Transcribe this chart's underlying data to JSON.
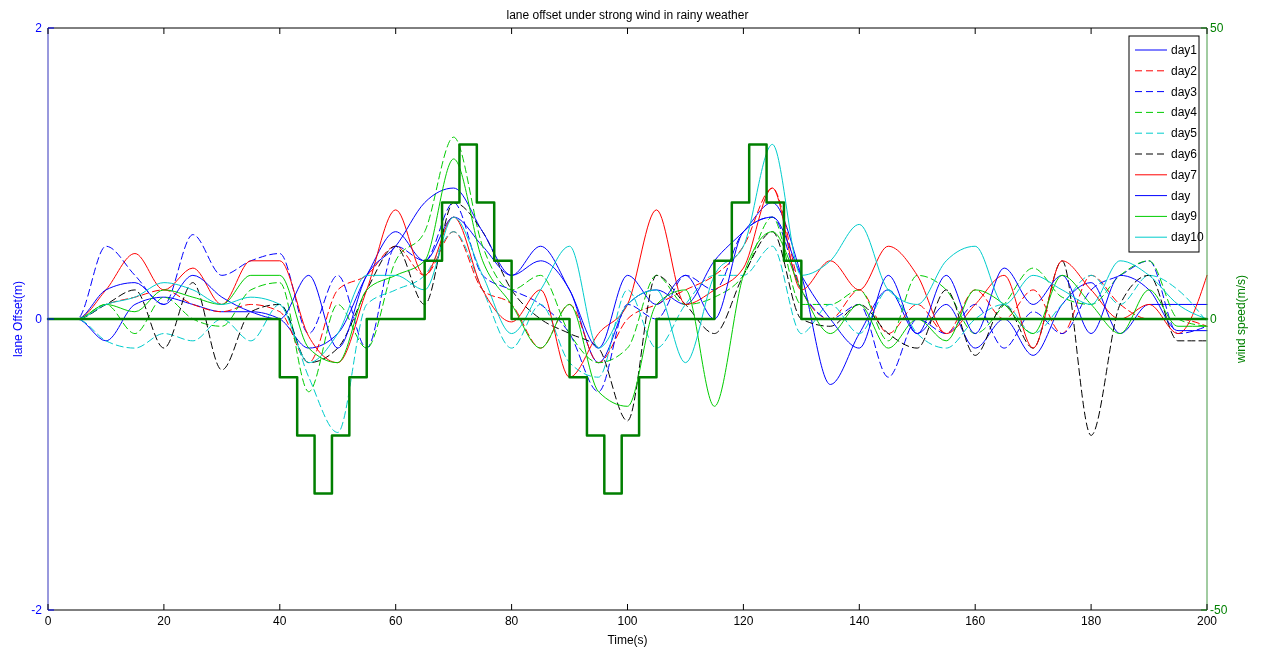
{
  "chart_data": {
    "type": "line",
    "title": "lane offset under strong wind in rainy weather",
    "xlabel": "Time(s)",
    "ylabel": "lane Offset(m)",
    "y2label": "wind speed(m/s)",
    "xlim": [
      0,
      200
    ],
    "xticks": [
      0,
      20,
      40,
      60,
      80,
      100,
      120,
      140,
      160,
      180,
      200
    ],
    "ylim": [
      -2,
      2
    ],
    "yticks": [
      -2,
      0,
      2
    ],
    "y2lim": [
      -50,
      50
    ],
    "y2ticks": [
      -50,
      0,
      50
    ],
    "grid": false,
    "legend": "top right",
    "x": [
      0,
      5,
      10,
      15,
      20,
      25,
      30,
      35,
      40,
      45,
      50,
      55,
      60,
      65,
      70,
      75,
      80,
      85,
      90,
      95,
      100,
      105,
      110,
      115,
      120,
      125,
      130,
      135,
      140,
      145,
      150,
      155,
      160,
      165,
      170,
      175,
      180,
      185,
      190,
      195,
      200
    ],
    "series": [
      {
        "name": "day1",
        "color": "#0000ff",
        "line_style": "solid",
        "values": [
          0,
          0,
          -0.15,
          0.1,
          0.15,
          0.1,
          0.05,
          0.05,
          0,
          -0.2,
          -0.1,
          0.3,
          0.6,
          0.4,
          0.7,
          0.5,
          0.3,
          0.4,
          0.2,
          -0.3,
          0.1,
          0.2,
          0.1,
          0.4,
          0.6,
          0.8,
          0.3,
          -0.45,
          -0.1,
          0.2,
          -0.1,
          0.1,
          -0.2,
          0,
          -0.25,
          0.1,
          0.25,
          -0.1,
          0.1,
          0.1,
          0.1
        ]
      },
      {
        "name": "day2",
        "color": "#ff0000",
        "line_style": "dashed",
        "values": [
          0,
          0,
          0.1,
          0.15,
          0.2,
          0.1,
          0.05,
          0.1,
          0.05,
          -0.3,
          0.2,
          0.3,
          0.5,
          0.3,
          0.6,
          0.2,
          0.1,
          -0.2,
          0.1,
          -0.3,
          0,
          0.1,
          0.2,
          0.3,
          0.5,
          0.9,
          0.2,
          0,
          0.2,
          -0.1,
          0.1,
          -0.1,
          0.2,
          0,
          0.2,
          -0.1,
          0.3,
          0.1,
          0,
          0,
          -0.05
        ]
      },
      {
        "name": "day3",
        "color": "#0000ff",
        "line_style": "dashed",
        "values": [
          0,
          0,
          0.5,
          0.3,
          0.1,
          0.58,
          0.3,
          0.4,
          0.45,
          -0.1,
          0.3,
          -0.2,
          0.5,
          0.4,
          0.8,
          0.3,
          0.2,
          0.1,
          -0.1,
          -0.5,
          0.1,
          0,
          0.3,
          0.2,
          0.6,
          0.7,
          0.2,
          0,
          0.1,
          -0.4,
          0,
          -0.1,
          0.1,
          -0.2,
          0.05,
          -0.1,
          0.2,
          0.3,
          0.4,
          -0.1,
          -0.05
        ]
      },
      {
        "name": "day4",
        "color": "#00cc00",
        "line_style": "dashed",
        "values": [
          0,
          0,
          0.1,
          -0.1,
          0.15,
          0,
          -0.05,
          0.2,
          0.25,
          -0.5,
          0.1,
          -0.2,
          0.4,
          0.6,
          1.25,
          0.5,
          0.2,
          0.3,
          -0.1,
          -0.3,
          -0.2,
          0.3,
          0.1,
          0.15,
          0.3,
          0.7,
          0.1,
          0.1,
          0.2,
          -0.15,
          0.3,
          0.2,
          -0.1,
          0.1,
          0.35,
          0.15,
          0.1,
          0.3,
          0.4,
          0,
          -0.05
        ]
      },
      {
        "name": "day5",
        "color": "#00cccc",
        "line_style": "dashed",
        "values": [
          0,
          0,
          -0.15,
          -0.2,
          -0.1,
          -0.15,
          0,
          -0.15,
          0.1,
          -0.4,
          -0.78,
          0.1,
          0.2,
          0.3,
          0.6,
          0.2,
          -0.2,
          0.1,
          -0.3,
          -0.4,
          0.2,
          -0.2,
          0.1,
          0.3,
          0.3,
          0.5,
          -0.1,
          0.1,
          -0.1,
          0.2,
          -0.1,
          -0.2,
          0,
          0.1,
          -0.1,
          0.1,
          0.3,
          0.1,
          0.3,
          0.2,
          -0.02
        ]
      },
      {
        "name": "day6",
        "color": "#000000",
        "line_style": "dashed",
        "values": [
          0,
          0,
          0.1,
          0.2,
          -0.2,
          0.25,
          -0.35,
          0.05,
          0.1,
          -0.3,
          -0.2,
          0.2,
          0.5,
          0.1,
          0.8,
          0.6,
          0.2,
          0,
          -0.1,
          -0.2,
          -0.7,
          0.3,
          0.1,
          -0.1,
          0.3,
          0.6,
          0,
          -0.05,
          0.1,
          -0.1,
          -0.2,
          0.2,
          -0.25,
          0.1,
          -0.2,
          0.4,
          -0.8,
          0.1,
          0.3,
          -0.15,
          -0.15
        ]
      },
      {
        "name": "day7",
        "color": "#ff0000",
        "line_style": "solid",
        "values": [
          0,
          0,
          0.2,
          0.45,
          0.2,
          0.35,
          0.1,
          0.4,
          0.4,
          -0.12,
          -0.3,
          0.2,
          0.75,
          0.3,
          0.7,
          0.2,
          -0.02,
          0.2,
          -0.4,
          -0.1,
          0.1,
          0.75,
          0.1,
          0.2,
          0.35,
          0.9,
          0.2,
          0.4,
          0.2,
          0.5,
          0.3,
          -0.1,
          0.1,
          0.3,
          -0.2,
          0.4,
          0.2,
          0,
          0.1,
          -0.1,
          0.3
        ]
      },
      {
        "name": "day",
        "color": "#0000ff",
        "line_style": "solid",
        "values": [
          0,
          0,
          0.2,
          0.25,
          0.1,
          0.3,
          0.15,
          0.05,
          0,
          0.3,
          -0.2,
          0.3,
          0.5,
          0.8,
          0.9,
          0.6,
          0.3,
          0.5,
          0.2,
          -0.2,
          0.3,
          0.1,
          0.3,
          0,
          0.6,
          0.7,
          0.3,
          0,
          -0.2,
          0.3,
          -0.1,
          0.3,
          -0.1,
          0.35,
          0.1,
          0.3,
          -0.1,
          0.3,
          0.2,
          -0.08,
          -0.08
        ]
      },
      {
        "name": "day9",
        "color": "#00cc00",
        "line_style": "solid",
        "values": [
          0,
          0,
          0.1,
          0.05,
          0.2,
          0.15,
          0.1,
          0.3,
          0.3,
          -0.2,
          -0.3,
          0.2,
          0.3,
          0.4,
          1.1,
          0.4,
          0.1,
          -0.2,
          0.1,
          -0.5,
          -0.6,
          0.1,
          0.2,
          -0.6,
          0.3,
          0.6,
          0.2,
          -0.1,
          0.1,
          -0.2,
          0,
          -0.15,
          0.2,
          0.1,
          -0.1,
          0.3,
          0.1,
          -0.1,
          0.2,
          -0.05,
          -0.05
        ]
      },
      {
        "name": "day10",
        "color": "#00cccc",
        "line_style": "solid",
        "values": [
          0,
          0,
          0.1,
          0.15,
          0.25,
          0.2,
          0.1,
          0.15,
          0.1,
          -0.3,
          -0.1,
          0.3,
          0.3,
          0.2,
          0.7,
          0.3,
          -0.1,
          0.2,
          0.5,
          -0.2,
          0.1,
          0.2,
          -0.3,
          0.3,
          0.5,
          1.2,
          0.3,
          0.4,
          0.65,
          0.2,
          0.1,
          0.4,
          0.5,
          0.1,
          0.3,
          0.2,
          0.1,
          0.4,
          0.3,
          0.1,
          0
        ]
      },
      {
        "type": "step",
        "axis": "y2",
        "color": "#007f00",
        "line_style": "solid",
        "x": [
          0,
          40,
          43,
          46,
          49,
          52,
          55,
          65,
          68,
          71,
          74,
          77,
          80,
          90,
          93,
          96,
          99,
          102,
          105,
          115,
          118,
          121,
          124,
          127,
          130,
          200
        ],
        "values": [
          0,
          -10,
          -20,
          -30,
          -20,
          -10,
          0,
          10,
          20,
          30,
          20,
          10,
          0,
          -10,
          -20,
          -30,
          -20,
          -10,
          0,
          10,
          20,
          30,
          20,
          10,
          0,
          0
        ]
      }
    ]
  }
}
